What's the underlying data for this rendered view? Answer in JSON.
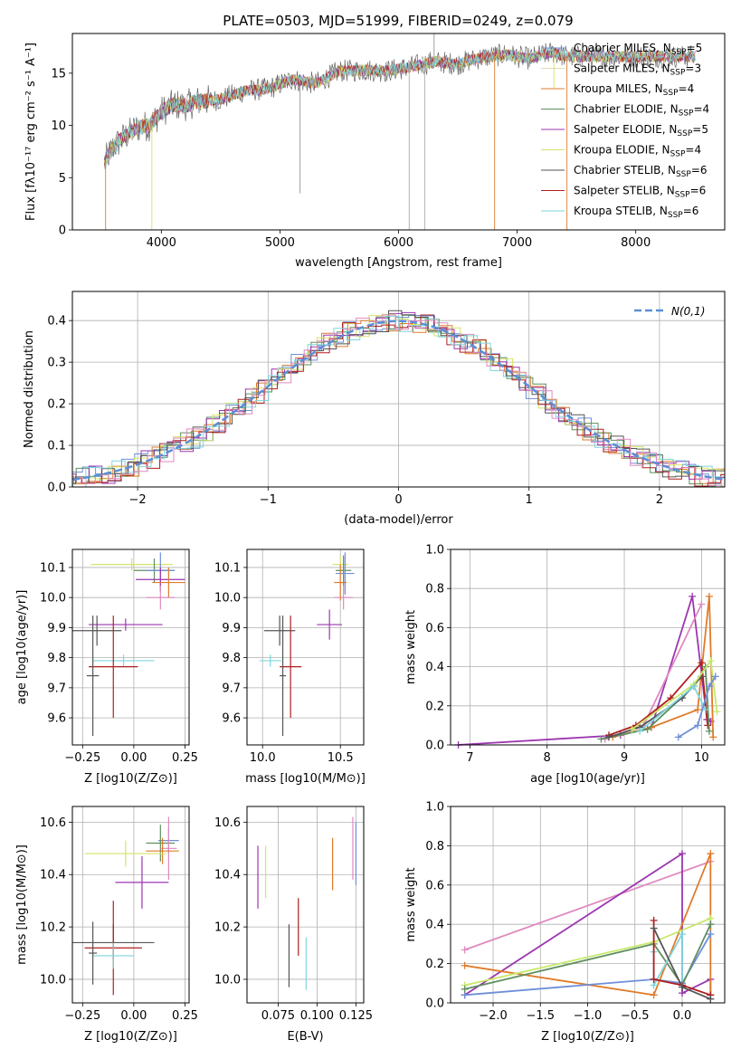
{
  "figure": {
    "title": "PLATE=0503, MJD=51999, FIBERID=0249, z=0.079"
  },
  "colors": {
    "ChabrierMILES": "#6f8fd8",
    "SalpeterMILES": "#e2dbb0",
    "KroupaMILES": "#e07b2a",
    "ChabrierELODIE": "#5f8f5f",
    "SalpeterELODIE": "#9c35b0",
    "KroupaELODIE": "#d6e36a",
    "ChabrierSTELIB": "#555555",
    "SalpeterSTELIB": "#b01f1f",
    "KroupaSTELIB": "#7fd6dd",
    "normal": "#5a8fd6",
    "extra1": "#e089c0",
    "extra2": "#c7e86a"
  },
  "legend_spectrum": [
    {
      "label": "Chabrier MILES, N",
      "sub": "SSP",
      "val": "=5",
      "color": "#6f8fd8"
    },
    {
      "label": "Salpeter MILES, N",
      "sub": "SSP",
      "val": "=3",
      "color": "#e2dbb0"
    },
    {
      "label": "Kroupa MILES, N",
      "sub": "SSP",
      "val": "=4",
      "color": "#e07b2a"
    },
    {
      "label": "Chabrier ELODIE, N",
      "sub": "SSP",
      "val": "=4",
      "color": "#5f8f5f"
    },
    {
      "label": "Salpeter ELODIE, N",
      "sub": "SSP",
      "val": "=5",
      "color": "#9c35b0"
    },
    {
      "label": "Kroupa ELODIE, N",
      "sub": "SSP",
      "val": "=4",
      "color": "#d6e36a"
    },
    {
      "label": "Chabrier STELIB, N",
      "sub": "SSP",
      "val": "=6",
      "color": "#555555"
    },
    {
      "label": "Salpeter STELIB, N",
      "sub": "SSP",
      "val": "=6",
      "color": "#b01f1f"
    },
    {
      "label": "Kroupa STELIB, N",
      "sub": "SSP",
      "val": "=6",
      "color": "#7fd6dd"
    }
  ],
  "chart_data": [
    {
      "id": "spectrum",
      "type": "line",
      "xlabel": "wavelength [Angstrom, rest frame]",
      "ylabel": "Flux [fλ10⁻¹⁷ erg cm⁻² s⁻¹ A⁻¹]",
      "xlim": [
        3250,
        8750
      ],
      "ylim": [
        0,
        18.8
      ],
      "xticks": [
        4000,
        5000,
        6000,
        7000,
        8000
      ],
      "yticks": [
        0,
        5,
        10,
        15
      ],
      "xticklabels": [
        "4000",
        "5000",
        "6000",
        "7000",
        "8000"
      ],
      "yticklabels": [
        "0",
        "5",
        "10",
        "15"
      ],
      "grid": false,
      "legend_position": "top-right",
      "continuum": {
        "x": [
          3520,
          3600,
          3700,
          3800,
          3900,
          4000,
          4100,
          4200,
          4300,
          4500,
          4700,
          4900,
          5100,
          5300,
          5500,
          5700,
          5900,
          6100,
          6300,
          6500,
          6700,
          6900,
          7100,
          7300,
          7420
        ],
        "y": [
          6.5,
          8.0,
          9.0,
          9.8,
          10.0,
          11.3,
          12.0,
          11.9,
          12.3,
          12.5,
          13.3,
          13.5,
          14.4,
          14.0,
          15.2,
          15.3,
          15.2,
          15.6,
          16.1,
          15.9,
          16.5,
          16.8,
          16.4,
          17.0,
          16.6
        ]
      }
    },
    {
      "id": "residuals",
      "type": "histogram",
      "xlabel": "(data-model)/error",
      "ylabel": "Normed distribution",
      "xlim": [
        -2.5,
        2.5
      ],
      "ylim": [
        0,
        0.47
      ],
      "xticks": [
        -2,
        -1,
        0,
        1,
        2
      ],
      "yticks": [
        0.0,
        0.1,
        0.2,
        0.3,
        0.4
      ],
      "xticklabels": [
        "−2",
        "−1",
        "0",
        "1",
        "2"
      ],
      "yticklabels": [
        "0.0",
        "0.1",
        "0.2",
        "0.3",
        "0.4"
      ],
      "grid": true,
      "legend": "N(0,1)",
      "legend_position": "top-right",
      "bin_width": 0.1
    },
    {
      "id": "age-vs-Z",
      "type": "scatter",
      "xlabel": "Z [log10(Z/Z⊙)]",
      "ylabel": "age [log10(age/yr)]",
      "xlim": [
        -0.3,
        0.27
      ],
      "ylim": [
        9.51,
        10.16
      ],
      "xticks": [
        -0.25,
        0.0,
        0.25
      ],
      "yticks": [
        9.6,
        9.7,
        9.8,
        9.9,
        10.0,
        10.1
      ],
      "xticklabels": [
        "−0.25",
        "0.00",
        "0.25"
      ],
      "yticklabels": [
        "9.6",
        "9.7",
        "9.8",
        "9.9",
        "10.0",
        "10.1"
      ],
      "grid": true,
      "points": [
        {
          "x": -0.01,
          "y": 10.11,
          "xerr": 0.2,
          "yerr": 0.02,
          "color": "#d6e36a"
        },
        {
          "x": 0.1,
          "y": 10.09,
          "xerr": 0.1,
          "yerr": 0.04,
          "color": "#5f8f5f"
        },
        {
          "x": 0.13,
          "y": 10.09,
          "xerr": 0.07,
          "yerr": 0.06,
          "color": "#6f8fd8"
        },
        {
          "x": 0.13,
          "y": 10.06,
          "xerr": 0.12,
          "yerr": 0.04,
          "color": "#9c35b0"
        },
        {
          "x": 0.17,
          "y": 10.05,
          "xerr": 0.08,
          "yerr": 0.05,
          "color": "#e07b2a"
        },
        {
          "x": 0.13,
          "y": 10.0,
          "xerr": 0.07,
          "yerr": 0.04,
          "color": "#e089c0"
        },
        {
          "x": -0.04,
          "y": 9.91,
          "xerr": 0.18,
          "yerr": 0.02,
          "color": "#9c35b0"
        },
        {
          "x": -0.18,
          "y": 9.89,
          "xerr": 0.12,
          "yerr": 0.05,
          "color": "#555555"
        },
        {
          "x": -0.05,
          "y": 9.79,
          "xerr": 0.15,
          "yerr": 0.02,
          "color": "#7fd6dd"
        },
        {
          "x": -0.1,
          "y": 9.77,
          "xerr": 0.12,
          "yerr": 0.17,
          "color": "#b01f1f"
        },
        {
          "x": -0.2,
          "y": 9.74,
          "xerr": 0.03,
          "yerr": 0.2,
          "color": "#555555"
        }
      ]
    },
    {
      "id": "age-vs-mass",
      "type": "scatter",
      "xlabel": "mass [log10(M/M⊙)]",
      "ylabel": "",
      "xlim": [
        9.9,
        10.65
      ],
      "ylim": [
        9.51,
        10.16
      ],
      "xticks": [
        10.0,
        10.5
      ],
      "yticks": [
        9.6,
        9.7,
        9.8,
        9.9,
        10.0,
        10.1
      ],
      "xticklabels": [
        "10.0",
        "10.5"
      ],
      "yticklabels": [
        "9.6",
        "9.7",
        "9.8",
        "9.9",
        "10.0",
        "10.1"
      ],
      "grid": true,
      "points": [
        {
          "x": 10.5,
          "y": 10.11,
          "xerr": 0.05,
          "yerr": 0.03,
          "color": "#d6e36a"
        },
        {
          "x": 10.52,
          "y": 10.09,
          "xerr": 0.05,
          "yerr": 0.05,
          "color": "#5f8f5f"
        },
        {
          "x": 10.53,
          "y": 10.08,
          "xerr": 0.06,
          "yerr": 0.07,
          "color": "#6f8fd8"
        },
        {
          "x": 10.5,
          "y": 10.05,
          "xerr": 0.04,
          "yerr": 0.06,
          "color": "#e07b2a"
        },
        {
          "x": 10.52,
          "y": 10.0,
          "xerr": 0.06,
          "yerr": 0.04,
          "color": "#e089c0"
        },
        {
          "x": 10.43,
          "y": 9.91,
          "xerr": 0.08,
          "yerr": 0.05,
          "color": "#9c35b0"
        },
        {
          "x": 10.11,
          "y": 9.89,
          "xerr": 0.1,
          "yerr": 0.05,
          "color": "#555555"
        },
        {
          "x": 10.05,
          "y": 9.79,
          "xerr": 0.07,
          "yerr": 0.02,
          "color": "#7fd6dd"
        },
        {
          "x": 10.18,
          "y": 9.77,
          "xerr": 0.07,
          "yerr": 0.17,
          "color": "#b01f1f"
        },
        {
          "x": 10.13,
          "y": 9.74,
          "xerr": 0.02,
          "yerr": 0.2,
          "color": "#555555"
        }
      ]
    },
    {
      "id": "weight-vs-age",
      "type": "line",
      "xlabel": "age [log10(age/yr)]",
      "ylabel": "mass weight",
      "xlim": [
        6.75,
        10.3
      ],
      "ylim": [
        0,
        1.0
      ],
      "xticks": [
        7,
        8,
        9,
        10
      ],
      "yticks": [
        0.0,
        0.2,
        0.4,
        0.6,
        0.8,
        1.0
      ],
      "xticklabels": [
        "7",
        "8",
        "9",
        "10"
      ],
      "yticklabels": [
        "0.0",
        "0.2",
        "0.4",
        "0.6",
        "0.8",
        "1.0"
      ],
      "grid": true,
      "series": [
        {
          "color": "#9c35b0",
          "x": [
            6.85,
            8.95,
            9.35,
            9.88,
            10.07,
            10.12
          ],
          "y": [
            0.0,
            0.05,
            0.09,
            0.76,
            0.13,
            0.12
          ]
        },
        {
          "color": "#e089c0",
          "x": [
            8.75,
            9.25,
            10.0
          ],
          "y": [
            0.03,
            0.1,
            0.72
          ]
        },
        {
          "color": "#e07b2a",
          "x": [
            8.85,
            9.35,
            9.95,
            10.1,
            10.15
          ],
          "y": [
            0.04,
            0.09,
            0.18,
            0.76,
            0.04
          ]
        },
        {
          "color": "#b01f1f",
          "x": [
            8.8,
            9.15,
            9.6,
            10.0,
            10.08
          ],
          "y": [
            0.05,
            0.1,
            0.24,
            0.42,
            0.1
          ]
        },
        {
          "color": "#5f8f5f",
          "x": [
            8.7,
            9.3,
            9.9,
            10.05,
            10.1
          ],
          "y": [
            0.03,
            0.08,
            0.3,
            0.4,
            0.07
          ]
        },
        {
          "color": "#555555",
          "x": [
            8.8,
            9.2,
            9.75,
            10.0
          ],
          "y": [
            0.04,
            0.09,
            0.24,
            0.35
          ]
        },
        {
          "color": "#c7e86a",
          "x": [
            9.1,
            9.9,
            10.12,
            10.2
          ],
          "y": [
            0.08,
            0.31,
            0.43,
            0.17
          ]
        },
        {
          "color": "#7fd6dd",
          "x": [
            9.2,
            9.9,
            10.05
          ],
          "y": [
            0.07,
            0.3,
            0.18
          ]
        },
        {
          "color": "#6f8fd8",
          "x": [
            9.7,
            9.95,
            10.1,
            10.18
          ],
          "y": [
            0.04,
            0.1,
            0.3,
            0.35
          ]
        }
      ]
    },
    {
      "id": "mass-vs-Z",
      "type": "scatter",
      "xlabel": "Z [log10(Z/Z⊙)]",
      "ylabel": "mass [log10(M/M⊙)]",
      "xlim": [
        -0.3,
        0.27
      ],
      "ylim": [
        9.91,
        10.66
      ],
      "xticks": [
        -0.25,
        0.0,
        0.25
      ],
      "yticks": [
        10.0,
        10.2,
        10.4,
        10.6
      ],
      "xticklabels": [
        "−0.25",
        "0.00",
        "0.25"
      ],
      "yticklabels": [
        "10.0",
        "10.2",
        "10.4",
        "10.6"
      ],
      "grid": true,
      "points": [
        {
          "x": 0.17,
          "y": 10.53,
          "xerr": 0.05,
          "yerr": 0.05,
          "color": "#6f8fd8"
        },
        {
          "x": 0.13,
          "y": 10.52,
          "xerr": 0.07,
          "yerr": 0.07,
          "color": "#5f8f5f"
        },
        {
          "x": 0.17,
          "y": 10.5,
          "xerr": 0.04,
          "yerr": 0.12,
          "color": "#e089c0"
        },
        {
          "x": 0.14,
          "y": 10.49,
          "xerr": 0.08,
          "yerr": 0.05,
          "color": "#e07b2a"
        },
        {
          "x": -0.04,
          "y": 10.48,
          "xerr": 0.2,
          "yerr": 0.05,
          "color": "#d6e36a"
        },
        {
          "x": 0.04,
          "y": 10.37,
          "xerr": 0.13,
          "yerr": 0.1,
          "color": "#9c35b0"
        },
        {
          "x": -0.1,
          "y": 10.14,
          "xerr": 0.2,
          "yerr": 0.07,
          "color": "#555555"
        },
        {
          "x": -0.1,
          "y": 10.12,
          "xerr": 0.14,
          "yerr": 0.18,
          "color": "#b01f1f"
        },
        {
          "x": -0.1,
          "y": 10.09,
          "xerr": 0.1,
          "yerr": 0.05,
          "color": "#7fd6dd"
        },
        {
          "x": -0.2,
          "y": 10.1,
          "xerr": 0.02,
          "yerr": 0.12,
          "color": "#555555"
        }
      ]
    },
    {
      "id": "mass-vs-EBV",
      "type": "scatter",
      "xlabel": "E(B-V)",
      "ylabel": "",
      "xlim": [
        0.055,
        0.13
      ],
      "ylim": [
        9.91,
        10.66
      ],
      "xticks": [
        0.075,
        0.1,
        0.125
      ],
      "yticks": [
        10.0,
        10.2,
        10.4,
        10.6
      ],
      "xticklabels": [
        "0.075",
        "0.100",
        "0.125"
      ],
      "yticklabels": [
        "10.0",
        "10.2",
        "10.4",
        "10.6"
      ],
      "grid": true,
      "points": [
        {
          "x": 0.062,
          "y": 10.39,
          "yerr": 0.12,
          "color": "#9c35b0"
        },
        {
          "x": 0.067,
          "y": 10.41,
          "yerr": 0.1,
          "color": "#d6e36a"
        },
        {
          "x": 0.082,
          "y": 10.09,
          "yerr": 0.12,
          "color": "#555555"
        },
        {
          "x": 0.088,
          "y": 10.2,
          "yerr": 0.11,
          "color": "#b01f1f"
        },
        {
          "x": 0.093,
          "y": 10.06,
          "yerr": 0.1,
          "color": "#7fd6dd"
        },
        {
          "x": 0.11,
          "y": 10.44,
          "yerr": 0.1,
          "color": "#e07b2a"
        },
        {
          "x": 0.123,
          "y": 10.5,
          "yerr": 0.12,
          "color": "#e089c0"
        },
        {
          "x": 0.125,
          "y": 10.48,
          "yerr": 0.12,
          "color": "#6f8fd8"
        }
      ]
    },
    {
      "id": "weight-vs-Z",
      "type": "line",
      "xlabel": "Z [log10(Z/Z⊙)]",
      "ylabel": "mass weight",
      "xlim": [
        -2.45,
        0.45
      ],
      "ylim": [
        0,
        1.0
      ],
      "xticks": [
        -2.0,
        -1.5,
        -1.0,
        -0.5,
        0.0
      ],
      "yticks": [
        0.0,
        0.2,
        0.4,
        0.6,
        0.8,
        1.0
      ],
      "xticklabels": [
        "−2.0",
        "−1.5",
        "−1.0",
        "−0.5",
        "0.0"
      ],
      "yticklabels": [
        "0.0",
        "0.2",
        "0.4",
        "0.6",
        "0.8",
        "1.0"
      ],
      "grid": true,
      "series": [
        {
          "color": "#e089c0",
          "x": [
            -2.3,
            0.3
          ],
          "y": [
            0.27,
            0.72
          ]
        },
        {
          "color": "#9c35b0",
          "x": [
            -2.3,
            0.0,
            0.0,
            0.3,
            0.3
          ],
          "y": [
            0.04,
            0.76,
            0.05,
            0.12,
            0.02
          ]
        },
        {
          "color": "#e07b2a",
          "x": [
            -2.3,
            -0.3,
            0.3,
            0.3
          ],
          "y": [
            0.19,
            0.04,
            0.76,
            0.04
          ]
        },
        {
          "color": "#6f8fd8",
          "x": [
            -2.3,
            -0.3,
            0.0,
            0.3
          ],
          "y": [
            0.04,
            0.12,
            0.1,
            0.35
          ]
        },
        {
          "color": "#c7e86a",
          "x": [
            -2.3,
            -0.3,
            0.3
          ],
          "y": [
            0.09,
            0.31,
            0.43
          ]
        },
        {
          "color": "#5f8f5f",
          "x": [
            -2.3,
            -0.3,
            0.0,
            0.3
          ],
          "y": [
            0.07,
            0.3,
            0.09,
            0.4
          ]
        },
        {
          "color": "#7fd6dd",
          "x": [
            -0.3,
            -0.3,
            0.0,
            0.0
          ],
          "y": [
            0.26,
            0.09,
            0.35,
            0.09
          ]
        },
        {
          "color": "#b01f1f",
          "x": [
            -0.3,
            -0.3,
            0.0,
            0.3
          ],
          "y": [
            0.42,
            0.12,
            0.09,
            0.04
          ]
        },
        {
          "color": "#555555",
          "x": [
            -0.3,
            0.0,
            0.3
          ],
          "y": [
            0.38,
            0.08,
            0.02
          ]
        }
      ]
    }
  ]
}
